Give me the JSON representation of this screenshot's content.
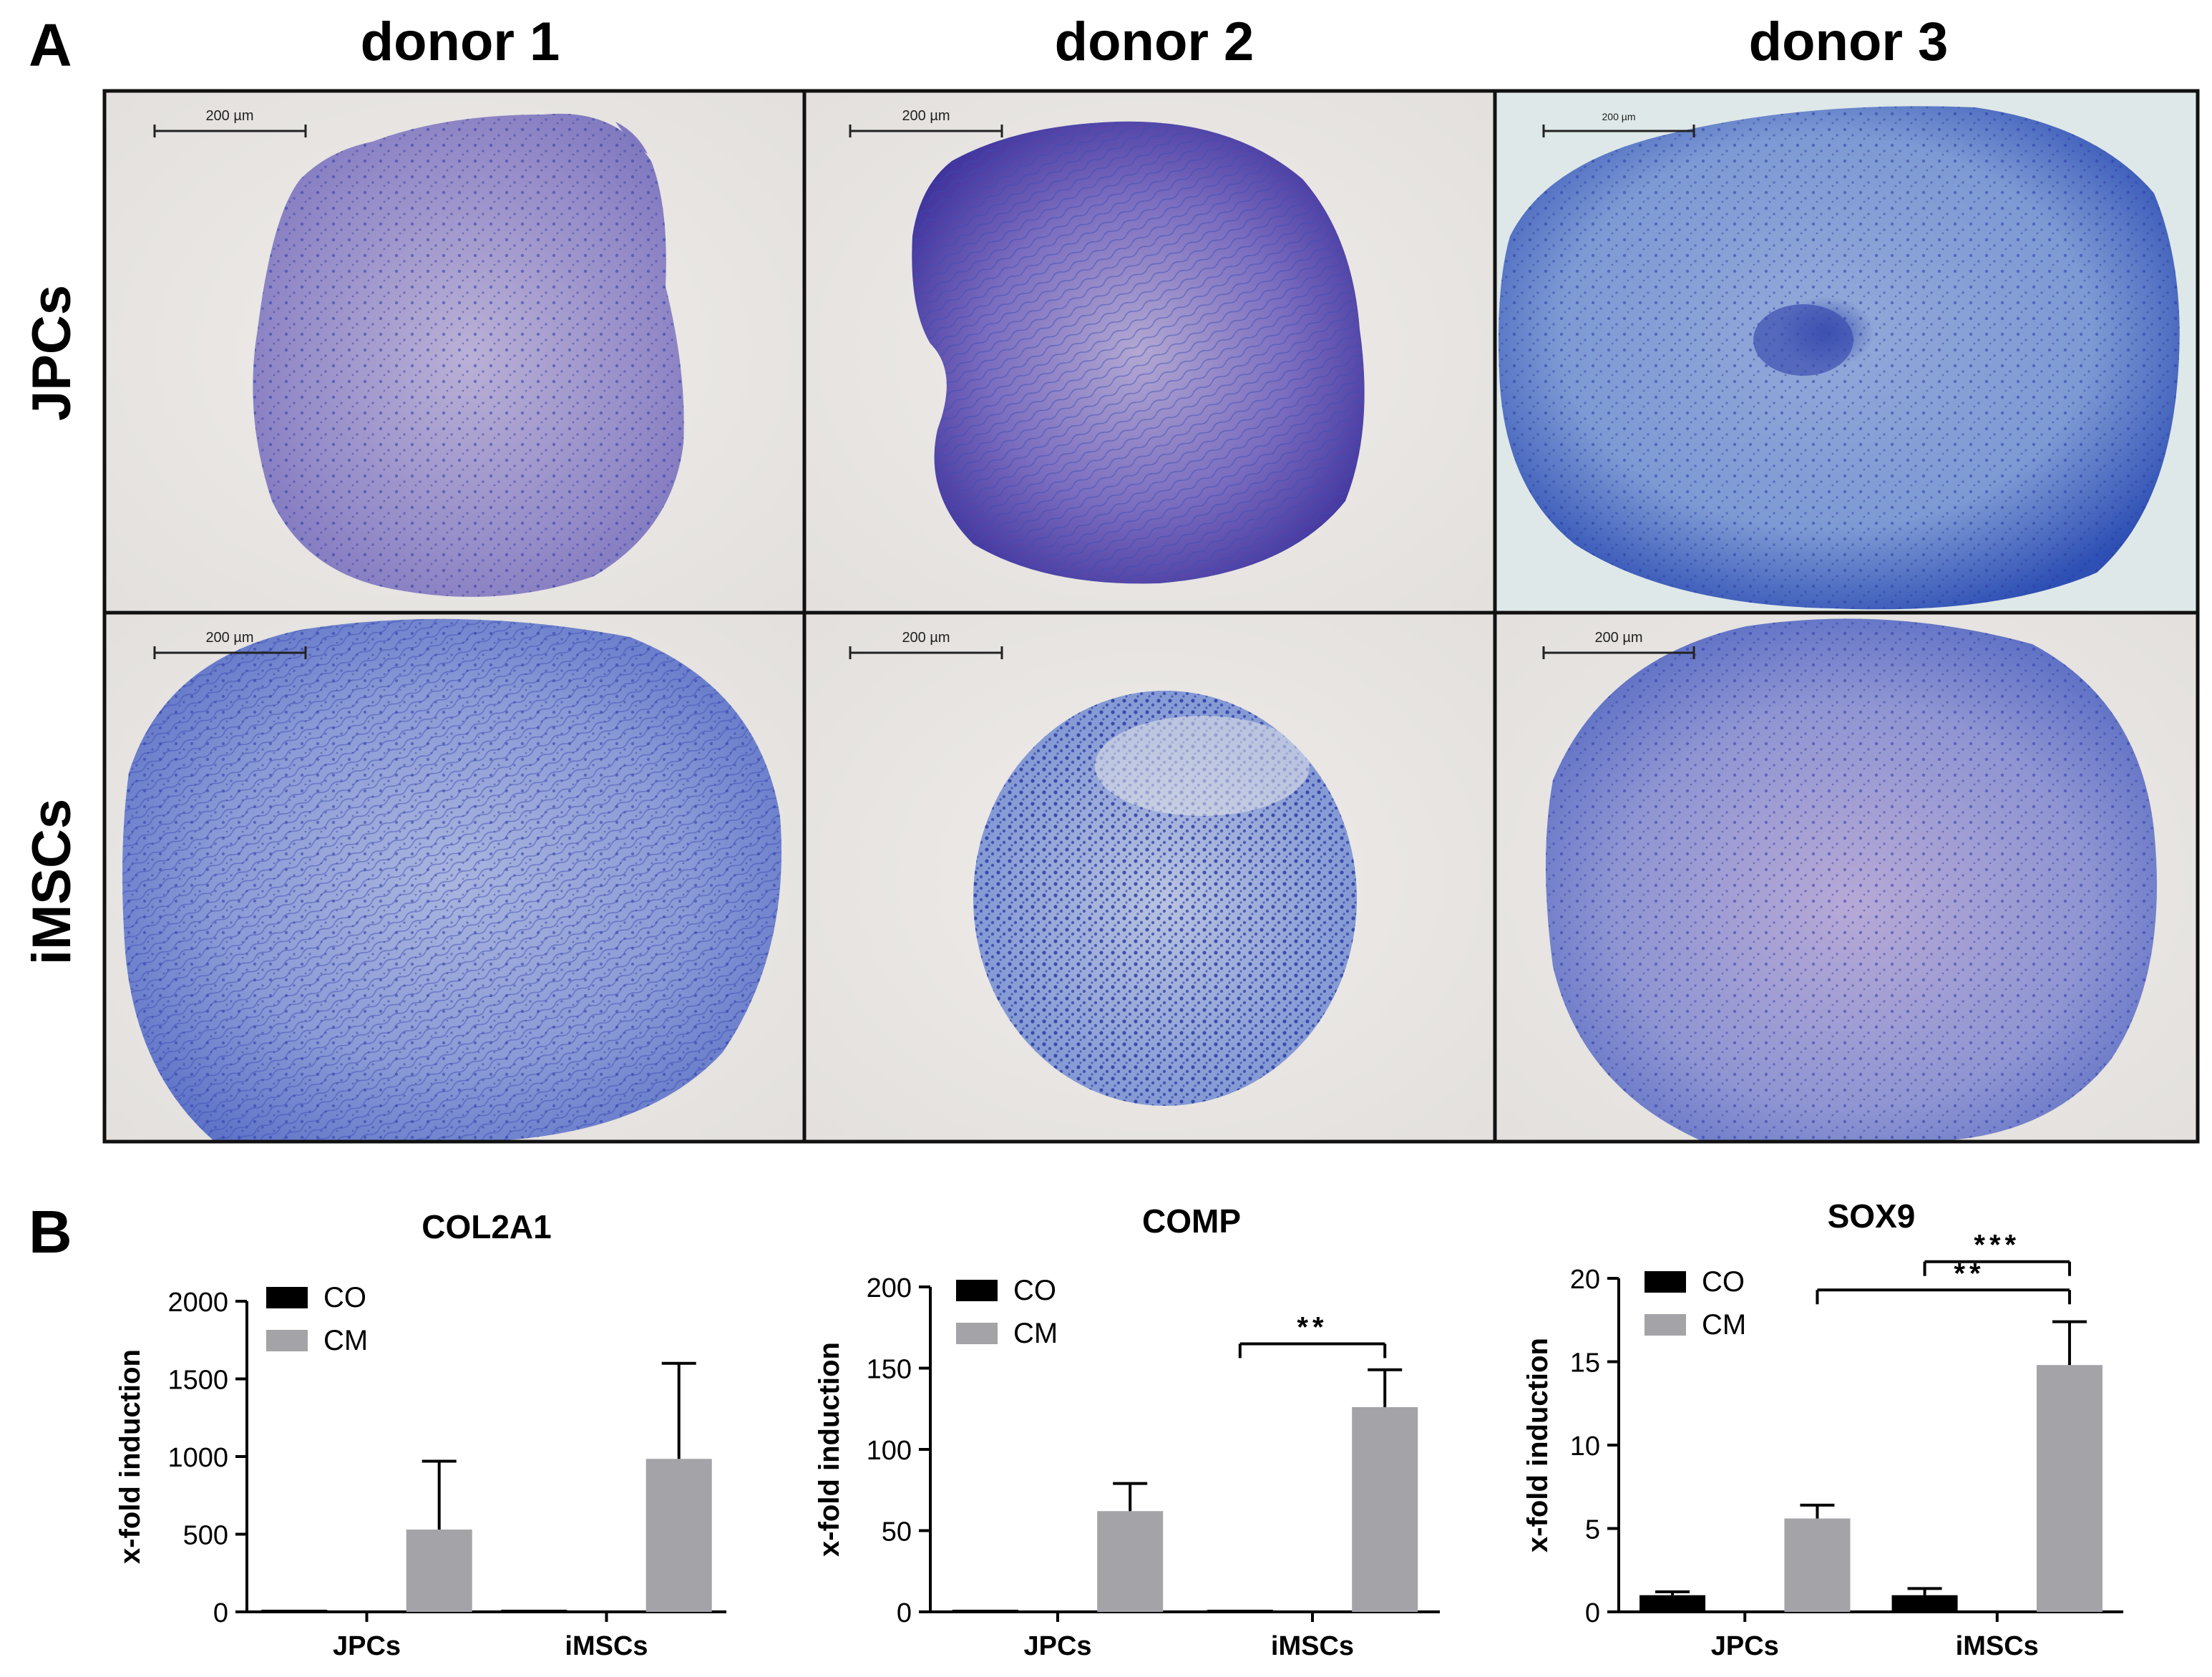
{
  "panel_a": {
    "label": "A",
    "columns": [
      "donor 1",
      "donor 2",
      "donor 3"
    ],
    "rows": [
      "JPCs",
      "iMSCs"
    ],
    "scale_bar": "200 µm",
    "stain_colors": [
      "#e9e5e2",
      "#6a5fb8",
      "#3a48b0",
      "#4a72c4"
    ]
  },
  "panel_b": {
    "label": "B"
  },
  "chart_data": [
    {
      "type": "bar",
      "title": "COL2A1",
      "xlabel": "",
      "ylabel": "x-fold induction",
      "categories": [
        "JPCs",
        "iMSCs"
      ],
      "ylim": [
        0,
        2000
      ],
      "yticks": [
        "0",
        "500",
        "1000",
        "1500",
        "2000"
      ],
      "series": [
        {
          "name": "CO",
          "color": "#000000",
          "values": [
            1,
            1
          ],
          "errors": [
            0,
            0
          ]
        },
        {
          "name": "CM",
          "color": "#a3a3a8",
          "values": [
            530,
            985
          ],
          "errors": [
            440,
            615
          ]
        }
      ],
      "legend": "top-left",
      "grid": false,
      "significance": []
    },
    {
      "type": "bar",
      "title": "COMP",
      "xlabel": "",
      "ylabel": "x-fold induction",
      "categories": [
        "JPCs",
        "iMSCs"
      ],
      "ylim": [
        0,
        200
      ],
      "yticks": [
        "0",
        "50",
        "100",
        "150",
        "200"
      ],
      "series": [
        {
          "name": "CO",
          "color": "#000000",
          "values": [
            1,
            1
          ],
          "errors": [
            0,
            0
          ]
        },
        {
          "name": "CM",
          "color": "#a3a3a8",
          "values": [
            62,
            126
          ],
          "errors": [
            17,
            23
          ]
        }
      ],
      "legend": "top-left",
      "grid": false,
      "significance": [
        {
          "label": "**",
          "from": [
            1,
            0
          ],
          "to": [
            1,
            1
          ],
          "y": 165
        }
      ]
    },
    {
      "type": "bar",
      "title": "SOX9",
      "xlabel": "",
      "ylabel": "x-fold induction",
      "categories": [
        "JPCs",
        "iMSCs"
      ],
      "ylim": [
        0,
        20
      ],
      "yticks": [
        "0",
        "5",
        "10",
        "15",
        "20"
      ],
      "series": [
        {
          "name": "CO",
          "color": "#000000",
          "values": [
            1.0,
            1.0
          ],
          "errors": [
            0.2,
            0.4
          ]
        },
        {
          "name": "CM",
          "color": "#a3a3a8",
          "values": [
            5.6,
            14.8
          ],
          "errors": [
            0.8,
            2.6
          ]
        }
      ],
      "legend": "top-left",
      "grid": false,
      "significance": [
        {
          "label": "**",
          "from": [
            0,
            1
          ],
          "to": [
            1,
            1
          ],
          "y": 19.3
        },
        {
          "label": "***",
          "from": [
            1,
            0
          ],
          "to": [
            1,
            1
          ],
          "y": 21.0
        }
      ]
    }
  ]
}
